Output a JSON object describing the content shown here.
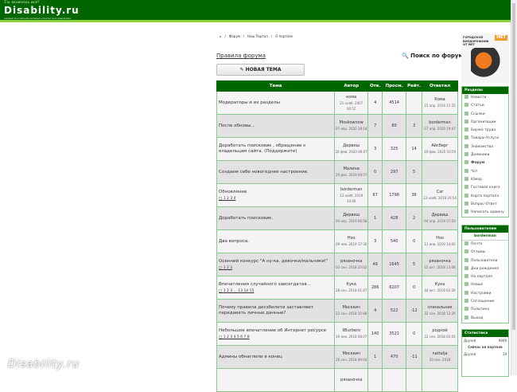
{
  "header": {
    "slogan": "Ты можешь всё!",
    "logo": "Disability.ru",
    "subtitle": "первый российский интернет-портал для инвалидов",
    "brand_color": "#006600"
  },
  "breadcrumb": [
    "⌂",
    "/",
    "Форум",
    "/",
    "Наш Портал",
    "/",
    "О портале"
  ],
  "rules_link": "Правила форума",
  "search_link": "Поиск по форуму",
  "new_topic": "НОВАЯ ТЕМА",
  "table": {
    "headers": [
      "Тема",
      "Автор",
      "Отв.",
      "Просм.",
      "Рейт.",
      "Ответил"
    ],
    "rows": [
      {
        "title": "Модераторы и их разделы",
        "pages": "",
        "author": "кома",
        "adate": "21 нояб. 2007 00:52",
        "replies": "4",
        "views": "4514",
        "rating": "",
        "last": "Кома",
        "ldate": "15 апр. 2014 11:35"
      },
      {
        "title": "После обновы...",
        "pages": "",
        "author": "Moskownow",
        "adate": "07 апр. 2020 18:18",
        "replies": "7",
        "views": "80",
        "rating": "3",
        "last": "borderman",
        "ldate": "07 апр. 2020 19:47"
      },
      {
        "title": "Доработать поисковик , обращение к владельцам сайта. (Поддержите)",
        "pages": "",
        "author": "Дервиш",
        "adate": "16 фев. 2020 06:07",
        "replies": "3",
        "views": "325",
        "rating": "14",
        "last": "Айсберг",
        "ldate": "19 фев. 2020 10:59"
      },
      {
        "title": "Создаем себе новогоднее настроение.",
        "pages": "",
        "author": "Малина",
        "adate": "29 дек. 2019 09:57",
        "replies": "0",
        "views": "297",
        "rating": "5",
        "last": "",
        "ldate": ""
      },
      {
        "title": "Обновление",
        "pages": "1 2 3 4",
        "author": "borderman",
        "adate": "13 нояб. 2019 14:46",
        "replies": "67",
        "views": "1798",
        "rating": "36",
        "last": "Car",
        "ldate": "23 нояб. 2019 20:54"
      },
      {
        "title": "Доработать поисковик.",
        "pages": "",
        "author": "Дервиш",
        "adate": "04 апр. 2019 06:58",
        "replies": "1",
        "views": "428",
        "rating": "2",
        "last": "Дервиш",
        "ldate": "04 апр. 2019 07:50"
      },
      {
        "title": "Два вопроса.",
        "pages": "",
        "author": "Нэо",
        "adate": "09 янв. 2019 17:30",
        "replies": "3",
        "views": "540",
        "rating": "0",
        "last": "Нэо",
        "ldate": "11 янв. 2019 14:00"
      },
      {
        "title": "Осенний конкурс \"А ну-ка, девочки/мальчики!\"",
        "pages": "1 2 3",
        "author": "рязаночка",
        "adate": "03 сен. 2018 23:02",
        "replies": "49",
        "views": "1645",
        "rating": "5",
        "last": "рязаночка",
        "ldate": "15 окт. 2018 13:08"
      },
      {
        "title": "Впечатления случайного завсегдатая...",
        "pages": "1 2 3 ... 13 14 15",
        "author": "Кука",
        "adate": "28 сен. 2018 01:47",
        "replies": "286",
        "views": "6207",
        "rating": "0",
        "last": "Кука",
        "ldate": "04 окт. 2018 02:29"
      },
      {
        "title": "Почему правила дисэбилити заставляют передавать личные данные?",
        "pages": "",
        "author": "Москвич",
        "adate": "22 сен. 2018 10:48",
        "replies": "4",
        "views": "522",
        "rating": "-12",
        "last": "спинальник",
        "ldate": "22 сен. 2018 12:29"
      },
      {
        "title": "Небольшое впечатление об Интернет ресурсе",
        "pages": "1 2 3 4 5 6 7 8",
        "author": "IlBurbero",
        "adate": "19 янв. 2018 08:07",
        "replies": "140",
        "views": "3521",
        "rating": "0",
        "last": "родной",
        "ldate": "22 сен. 2018 01:03"
      },
      {
        "title": "Админы обнаглели в конец",
        "pages": "",
        "author": "Москвич",
        "adate": "20 сен. 2018 09:04",
        "replies": "1",
        "views": "470",
        "rating": "-11",
        "last": "nattalja",
        "ldate": "20 сен. 2018"
      },
      {
        "title": "",
        "pages": "",
        "author": "рязаночка",
        "adate": "",
        "replies": "",
        "views": "",
        "rating": "",
        "last": "",
        "ldate": ""
      }
    ]
  },
  "ad": {
    "text": "ГОРОДСКОЙ ВНЕДОРОЖНИК ОТ МЕТ",
    "brand": "МЕТ"
  },
  "sections": {
    "title": "Разделы",
    "items": [
      "Новости",
      "Статьи",
      "Ссылки",
      "Организации",
      "Биржа труда",
      "Товары-Услуги",
      "Знакомства",
      "Дневники",
      "Форум",
      "Чат",
      "Юмор",
      "Гостевая книга",
      "Карта портала",
      "Вопрос-Ответ",
      "Написать админу"
    ]
  },
  "users": {
    "title": "Пользователям",
    "username": "borderman",
    "items": [
      "Почта",
      "Отзывы",
      "Пользователи",
      "Дни рождения",
      "На портале",
      "Новые",
      "Настройки",
      "Соглашение",
      "Политика",
      "Выход"
    ]
  },
  "stats": {
    "title": "Статистика",
    "friends_label": "Друзей",
    "friends": "9849",
    "online_title": "Сейчас на портале",
    "online_friends_label": "Друзей",
    "online_friends": "19"
  },
  "watermark": "Disability.ru"
}
